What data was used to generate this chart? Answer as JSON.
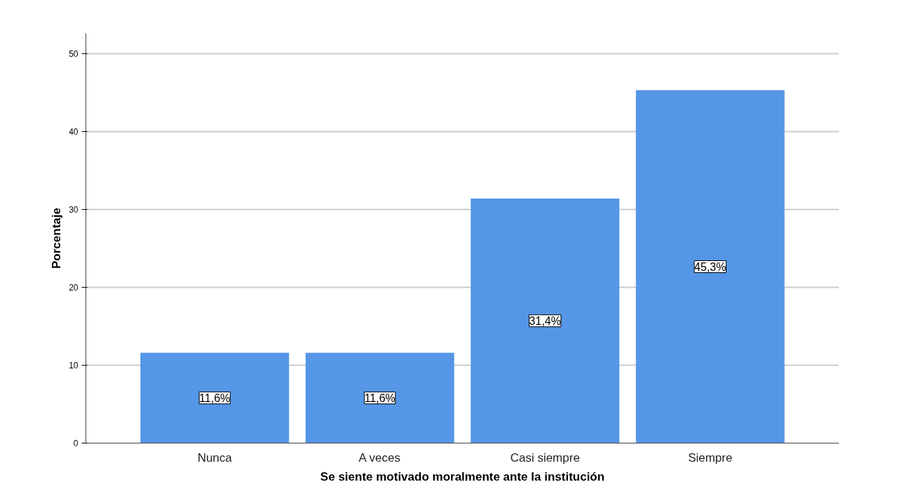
{
  "chart_data": {
    "type": "bar",
    "xlabel": "Se siente motivado moralmente ante la institución",
    "ylabel": "Porcentaje",
    "categories": [
      "Nunca",
      "A veces",
      "Casi siempre",
      "Siempre"
    ],
    "values": [
      11.6,
      11.6,
      31.4,
      45.3
    ],
    "value_labels": [
      "11,6%",
      "11,6%",
      "31,4%",
      "45,3%"
    ],
    "color": "#5596e6",
    "ylim": [
      0,
      52.6
    ],
    "yticks": [
      0,
      10,
      20,
      30,
      40,
      50
    ],
    "grid": "y"
  }
}
